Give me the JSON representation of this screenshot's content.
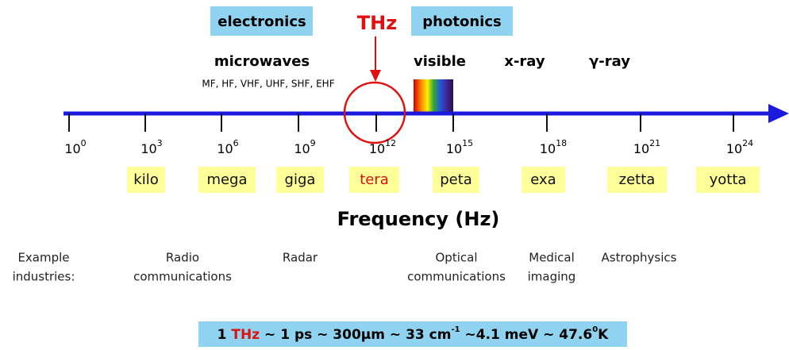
{
  "header": {
    "electronics": "electronics",
    "thz": "THz",
    "photonics": "photonics"
  },
  "bands": {
    "microwaves": "microwaves",
    "microwave_bands": "MF, HF, VHF, UHF, SHF, EHF",
    "visible": "visible",
    "xray": "x-ray",
    "gamma": "γ-ray"
  },
  "axis": {
    "ticks": [
      {
        "base": "10",
        "exp": "0"
      },
      {
        "base": "10",
        "exp": "3"
      },
      {
        "base": "10",
        "exp": "6"
      },
      {
        "base": "10",
        "exp": "9"
      },
      {
        "base": "10",
        "exp": "12"
      },
      {
        "base": "10",
        "exp": "15"
      },
      {
        "base": "10",
        "exp": "18"
      },
      {
        "base": "10",
        "exp": "21"
      },
      {
        "base": "10",
        "exp": "24"
      }
    ],
    "label": "Frequency (Hz)"
  },
  "prefixes": [
    "kilo",
    "mega",
    "giga",
    "tera",
    "peta",
    "exa",
    "zetta",
    "yotta"
  ],
  "industries": [
    {
      "l1": "Example",
      "l2": "industries:"
    },
    {
      "l1": "Radio",
      "l2": "communications"
    },
    {
      "l1": "Radar",
      "l2": ""
    },
    {
      "l1": "Optical",
      "l2": "communications"
    },
    {
      "l1": "Medical",
      "l2": "imaging"
    },
    {
      "l1": "Astrophysics",
      "l2": ""
    }
  ],
  "formula": {
    "a": "1 ",
    "unit": "THz",
    "b": " ~ 1 ps ~ 300µm ~ 33 cm",
    "sup1": "-1",
    "c": " ~4.1 meV ~ 47.6",
    "sup2": "0",
    "d": "K"
  }
}
